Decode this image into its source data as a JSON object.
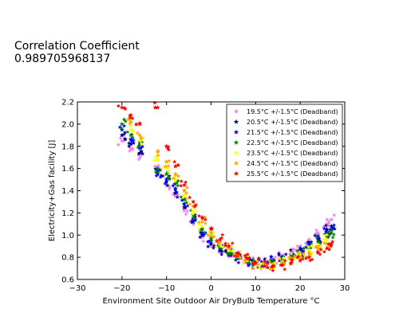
{
  "header": {
    "line1": "Correlation Coefficient",
    "line2": "0.989705968137"
  },
  "chart_data": {
    "type": "scatter",
    "xlabel": "Environment Site Outdoor Air DryBulb Temperature °C",
    "ylabel": "Electricity+Gas facility [J]",
    "xlim": [
      -30,
      30
    ],
    "ylim": [
      0.6,
      2.2
    ],
    "xticks": [
      -30,
      -20,
      -10,
      0,
      10,
      20,
      30
    ],
    "xtick_labels": [
      "−30",
      "−20",
      "−10",
      "0",
      "10",
      "20",
      "30"
    ],
    "yticks": [
      0.6,
      0.8,
      1.0,
      1.2,
      1.4,
      1.6,
      1.8,
      2.0,
      2.2
    ],
    "ytick_labels": [
      "0.6",
      "0.8",
      "1.0",
      "1.2",
      "1.4",
      "1.6",
      "1.8",
      "2.0",
      "2.2"
    ],
    "marker": "star",
    "legend_position": "top-right",
    "series": [
      {
        "name": "19.5°C +/-1.5°C (Deadband)",
        "color": "#ee82ee",
        "points": [
          [
            -20,
            1.85
          ],
          [
            -18,
            1.78
          ],
          [
            -16,
            1.7
          ],
          [
            -12,
            1.62
          ],
          [
            -10,
            1.45
          ],
          [
            -8,
            1.35
          ],
          [
            -6,
            1.22
          ],
          [
            -4,
            1.1
          ],
          [
            -2,
            0.98
          ],
          [
            0,
            0.9
          ],
          [
            2,
            0.85
          ],
          [
            4,
            0.82
          ],
          [
            6,
            0.8
          ],
          [
            8,
            0.78
          ],
          [
            10,
            0.76
          ],
          [
            12,
            0.76
          ],
          [
            14,
            0.78
          ],
          [
            16,
            0.8
          ],
          [
            18,
            0.85
          ],
          [
            20,
            0.9
          ],
          [
            22,
            0.96
          ],
          [
            24,
            1.02
          ],
          [
            26,
            1.1
          ],
          [
            27,
            1.14
          ]
        ]
      },
      {
        "name": "20.5°C +/-1.5°C (Deadband)",
        "color": "#00008b",
        "points": [
          [
            -20,
            1.9
          ],
          [
            -18,
            1.82
          ],
          [
            -16,
            1.74
          ],
          [
            -12,
            1.58
          ],
          [
            -10,
            1.48
          ],
          [
            -8,
            1.38
          ],
          [
            -6,
            1.25
          ],
          [
            -4,
            1.12
          ],
          [
            -2,
            1.0
          ],
          [
            0,
            0.92
          ],
          [
            2,
            0.86
          ],
          [
            4,
            0.82
          ],
          [
            6,
            0.79
          ],
          [
            8,
            0.77
          ],
          [
            10,
            0.75
          ],
          [
            12,
            0.75
          ],
          [
            14,
            0.77
          ],
          [
            16,
            0.79
          ],
          [
            18,
            0.83
          ],
          [
            20,
            0.88
          ],
          [
            22,
            0.93
          ],
          [
            24,
            0.98
          ],
          [
            26,
            1.05
          ],
          [
            27,
            1.08
          ]
        ]
      },
      {
        "name": "21.5°C +/-1.5°C (Deadband)",
        "color": "#0000ff",
        "points": [
          [
            -20,
            1.95
          ],
          [
            -18,
            1.86
          ],
          [
            -16,
            1.78
          ],
          [
            -12,
            1.55
          ],
          [
            -10,
            1.5
          ],
          [
            -8,
            1.42
          ],
          [
            -6,
            1.28
          ],
          [
            -4,
            1.15
          ],
          [
            -2,
            1.02
          ],
          [
            0,
            0.95
          ],
          [
            2,
            0.88
          ],
          [
            4,
            0.83
          ],
          [
            6,
            0.79
          ],
          [
            8,
            0.76
          ],
          [
            10,
            0.74
          ],
          [
            12,
            0.74
          ],
          [
            14,
            0.76
          ],
          [
            16,
            0.78
          ],
          [
            18,
            0.82
          ],
          [
            20,
            0.86
          ],
          [
            22,
            0.91
          ],
          [
            24,
            0.96
          ],
          [
            26,
            1.02
          ],
          [
            27,
            1.05
          ]
        ]
      },
      {
        "name": "22.5°C +/-1.5°C (Deadband)",
        "color": "#008000",
        "points": [
          [
            -20,
            2.0
          ],
          [
            -18,
            1.9
          ],
          [
            -16,
            1.82
          ],
          [
            -12,
            1.6
          ],
          [
            -10,
            1.55
          ],
          [
            -8,
            1.46
          ],
          [
            -6,
            1.32
          ],
          [
            -4,
            1.18
          ],
          [
            -2,
            1.05
          ],
          [
            0,
            0.97
          ],
          [
            2,
            0.9
          ],
          [
            4,
            0.84
          ],
          [
            6,
            0.8
          ],
          [
            8,
            0.76
          ],
          [
            10,
            0.74
          ],
          [
            12,
            0.73
          ],
          [
            14,
            0.75
          ],
          [
            16,
            0.77
          ],
          [
            18,
            0.8
          ],
          [
            20,
            0.84
          ],
          [
            22,
            0.89
          ],
          [
            24,
            0.94
          ],
          [
            26,
            0.99
          ],
          [
            27,
            1.02
          ]
        ]
      },
      {
        "name": "23.5°C +/-1.5°C (Deadband)",
        "color": "#ffff00",
        "points": [
          [
            -18,
            1.95
          ],
          [
            -16,
            1.86
          ],
          [
            -12,
            1.68
          ],
          [
            -10,
            1.6
          ],
          [
            -8,
            1.5
          ],
          [
            -6,
            1.36
          ],
          [
            -4,
            1.22
          ],
          [
            -2,
            1.08
          ],
          [
            0,
            1.0
          ],
          [
            2,
            0.92
          ],
          [
            4,
            0.86
          ],
          [
            6,
            0.81
          ],
          [
            8,
            0.77
          ],
          [
            10,
            0.74
          ],
          [
            12,
            0.73
          ],
          [
            14,
            0.74
          ],
          [
            16,
            0.76
          ],
          [
            18,
            0.79
          ],
          [
            20,
            0.82
          ],
          [
            22,
            0.86
          ],
          [
            24,
            0.91
          ],
          [
            26,
            0.96
          ]
        ]
      },
      {
        "name": "24.5°C +/-1.5°C (Deadband)",
        "color": "#ffa500",
        "points": [
          [
            -18,
            2.02
          ],
          [
            -16,
            1.9
          ],
          [
            -12,
            1.75
          ],
          [
            -10,
            1.66
          ],
          [
            -8,
            1.55
          ],
          [
            -6,
            1.4
          ],
          [
            -4,
            1.26
          ],
          [
            -2,
            1.12
          ],
          [
            0,
            1.02
          ],
          [
            2,
            0.94
          ],
          [
            4,
            0.88
          ],
          [
            6,
            0.82
          ],
          [
            8,
            0.78
          ],
          [
            10,
            0.74
          ],
          [
            12,
            0.72
          ],
          [
            14,
            0.73
          ],
          [
            16,
            0.75
          ],
          [
            18,
            0.77
          ],
          [
            20,
            0.8
          ],
          [
            22,
            0.84
          ],
          [
            24,
            0.88
          ],
          [
            26,
            0.92
          ]
        ]
      },
      {
        "name": "25.5°C +/-1.5°C (Deadband)",
        "color": "#ff0000",
        "points": [
          [
            -20,
            2.15
          ],
          [
            -18,
            2.08
          ],
          [
            -16,
            2.0
          ],
          [
            -12,
            2.15
          ],
          [
            -10,
            1.8
          ],
          [
            -8,
            1.62
          ],
          [
            -6,
            1.45
          ],
          [
            -4,
            1.3
          ],
          [
            -2,
            1.16
          ],
          [
            0,
            1.06
          ],
          [
            2,
            0.96
          ],
          [
            4,
            0.9
          ],
          [
            6,
            0.84
          ],
          [
            8,
            0.79
          ],
          [
            10,
            0.75
          ],
          [
            12,
            0.72
          ],
          [
            14,
            0.72
          ],
          [
            16,
            0.73
          ],
          [
            18,
            0.75
          ],
          [
            20,
            0.77
          ],
          [
            22,
            0.8
          ],
          [
            24,
            0.84
          ],
          [
            26,
            0.88
          ],
          [
            27,
            0.92
          ]
        ]
      }
    ]
  }
}
